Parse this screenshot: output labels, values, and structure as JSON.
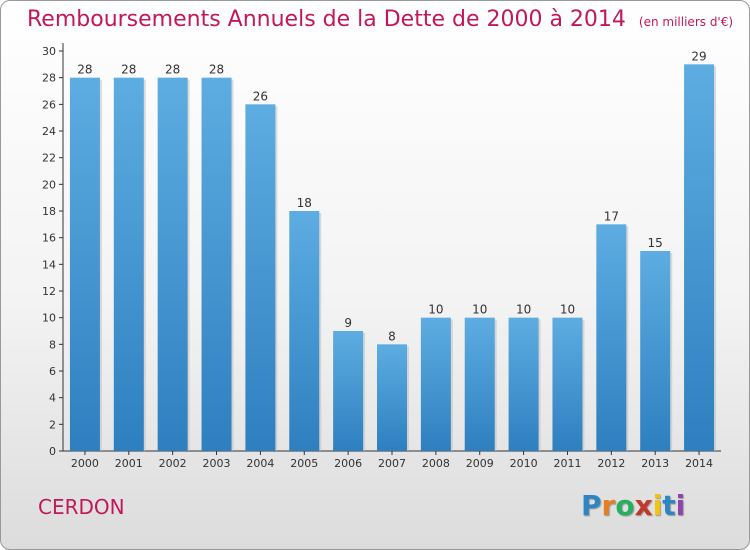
{
  "header": {
    "title": "Remboursements Annuels de la Dette de 2000 à 2014",
    "unit": "(en milliers d'€)"
  },
  "footer": {
    "commune": "CERDON",
    "logo_text": "Proxiti"
  },
  "colors": {
    "title": "#c2185b",
    "bar_light": "#5dade2",
    "bar_dark": "#2e7fbf",
    "axis": "#333333"
  },
  "chart_data": {
    "type": "bar",
    "title": "Remboursements Annuels de la Dette de 2000 à 2014",
    "subtitle": "(en milliers d'€)",
    "categories": [
      "2000",
      "2001",
      "2002",
      "2003",
      "2004",
      "2005",
      "2006",
      "2007",
      "2008",
      "2009",
      "2010",
      "2011",
      "2012",
      "2013",
      "2014"
    ],
    "values": [
      28,
      28,
      28,
      28,
      26,
      18,
      9,
      8,
      10,
      10,
      10,
      10,
      17,
      15,
      29
    ],
    "ylim": [
      0,
      30
    ],
    "yticks": [
      0,
      2,
      4,
      6,
      8,
      10,
      12,
      14,
      16,
      18,
      20,
      22,
      24,
      26,
      28,
      30
    ],
    "grid": false,
    "data_labels": true
  }
}
